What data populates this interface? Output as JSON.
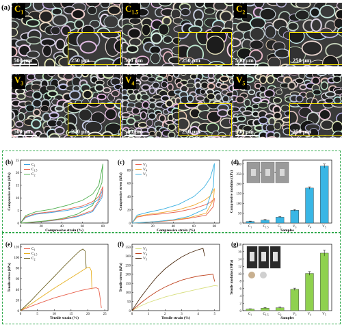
{
  "figure": {
    "panel_letters": {
      "a": "(a)",
      "b": "(b)",
      "c": "(c)",
      "d": "(d)",
      "e": "(e)",
      "f": "(f)",
      "g": "(g)"
    },
    "sem": [
      {
        "id": "C1",
        "tag": "C",
        "sub": "1",
        "scale_main": "500 μm",
        "scale_inset": "250 μm"
      },
      {
        "id": "C1.5",
        "tag": "C",
        "sub": "1.5",
        "scale_main": "500 μm",
        "scale_inset": "250 μm"
      },
      {
        "id": "C2",
        "tag": "C",
        "sub": "2",
        "scale_main": "500 μm",
        "scale_inset": "250 μm"
      },
      {
        "id": "V3",
        "tag": "V",
        "sub": "3",
        "scale_main": "500 μm",
        "scale_inset": "250 μm"
      },
      {
        "id": "V4",
        "tag": "V",
        "sub": "4",
        "scale_main": "500 μm",
        "scale_inset": "250 μm"
      },
      {
        "id": "V5",
        "tag": "V",
        "sub": "5",
        "scale_main": "500 μm",
        "scale_inset": "250 μm"
      }
    ],
    "colors": {
      "dash_border": "#2ea84a",
      "inset_border": "#ffea00",
      "tag_text": "#ffd400",
      "bar_d": "#39b6e5",
      "bar_g": "#8fd14f"
    }
  },
  "chart_data": [
    {
      "panel": "b",
      "type": "line",
      "xlabel": "Compressive strain (%)",
      "ylabel": "Compressive stress (kPa)",
      "xticks": [
        "0",
        "20",
        "40",
        "60",
        "80"
      ],
      "yticks": [
        "0",
        "5",
        "10",
        "15",
        "20",
        "25"
      ],
      "xlim": [
        0,
        85
      ],
      "ylim": [
        0,
        25
      ],
      "series": [
        {
          "name": "C1",
          "label": "C",
          "sub": "1",
          "color": "#3aa0e0",
          "x": [
            0,
            5,
            15,
            30,
            45,
            60,
            70,
            76,
            80,
            79,
            70,
            55,
            40,
            25,
            12,
            5,
            1
          ],
          "y": [
            0,
            2.2,
            3.5,
            4.2,
            5.0,
            6.2,
            7.8,
            9.5,
            13.5,
            10,
            4.5,
            2.5,
            1.4,
            0.7,
            0.3,
            0.1,
            0
          ]
        },
        {
          "name": "C1.5",
          "label": "C",
          "sub": "1.5",
          "color": "#e8604c",
          "x": [
            0,
            5,
            15,
            30,
            45,
            60,
            70,
            76,
            80,
            79,
            70,
            55,
            40,
            25,
            12,
            5,
            1
          ],
          "y": [
            0,
            2.5,
            3.8,
            4.5,
            5.5,
            6.8,
            8.5,
            10.5,
            14.5,
            11,
            5,
            2.8,
            1.5,
            0.8,
            0.3,
            0.1,
            0
          ]
        },
        {
          "name": "C2",
          "label": "C",
          "sub": "2",
          "color": "#4cae4c",
          "x": [
            0,
            5,
            15,
            30,
            45,
            60,
            70,
            76,
            80,
            79,
            70,
            55,
            40,
            25,
            12,
            5,
            1
          ],
          "y": [
            0,
            3.0,
            4.5,
            5.5,
            7.0,
            9.0,
            11.5,
            15.0,
            23.5,
            16,
            7,
            3.5,
            1.8,
            0.9,
            0.4,
            0.1,
            0
          ]
        }
      ]
    },
    {
      "panel": "c",
      "type": "line",
      "xlabel": "Compressive strain (%)",
      "ylabel": "Compressive stress (kPa)",
      "xticks": [
        "0",
        "20",
        "40",
        "60",
        "80"
      ],
      "yticks": [
        "0",
        "20",
        "40",
        "60",
        "80"
      ],
      "xlim": [
        0,
        85
      ],
      "ylim": [
        0,
        95
      ],
      "series": [
        {
          "name": "V3",
          "label": "V",
          "sub": "3",
          "color": "#e8604c",
          "x": [
            0,
            5,
            15,
            30,
            45,
            60,
            70,
            76,
            80,
            79,
            72,
            55,
            40,
            25,
            12,
            5,
            1
          ],
          "y": [
            0,
            9,
            12,
            14,
            17,
            22,
            27,
            31,
            37,
            25,
            12,
            7,
            4,
            2,
            1,
            0.3,
            0
          ]
        },
        {
          "name": "V4",
          "label": "V",
          "sub": "4",
          "color": "#f0a830",
          "x": [
            0,
            5,
            15,
            30,
            45,
            60,
            70,
            76,
            80,
            79,
            72,
            55,
            40,
            25,
            12,
            5,
            1
          ],
          "y": [
            0,
            10,
            13,
            16,
            20,
            27,
            34,
            41,
            52,
            35,
            15,
            8,
            4.5,
            2.5,
            1,
            0.3,
            0
          ]
        },
        {
          "name": "V5",
          "label": "V",
          "sub": "5",
          "color": "#3ab0e0",
          "x": [
            0,
            5,
            15,
            30,
            45,
            60,
            70,
            76,
            80,
            79,
            72,
            55,
            40,
            25,
            12,
            5,
            1
          ],
          "y": [
            0,
            12,
            16,
            21,
            28,
            40,
            54,
            68,
            90,
            55,
            22,
            10,
            5,
            2.5,
            1,
            0.3,
            0
          ]
        }
      ]
    },
    {
      "panel": "d",
      "type": "bar",
      "xlabel": "Samples",
      "ylabel": "Compressive modulus (kPa)",
      "categories": [
        {
          "t": "C",
          "s": "1"
        },
        {
          "t": "C",
          "s": "1.5"
        },
        {
          "t": "C",
          "s": "2"
        },
        {
          "t": "V",
          "s": "3"
        },
        {
          "t": "V",
          "s": "4"
        },
        {
          "t": "V",
          "s": "5"
        }
      ],
      "values": [
        8,
        15,
        30,
        65,
        178,
        290
      ],
      "errors": [
        2,
        3,
        3,
        4,
        6,
        10
      ],
      "yticks": [
        "0",
        "50",
        "100",
        "150",
        "200",
        "250",
        "300"
      ],
      "ylim": [
        0,
        320
      ]
    },
    {
      "panel": "e",
      "type": "line",
      "xlabel": "Tensile strain (%)",
      "ylabel": "Tensile stress (kPa)",
      "xticks": [
        "0",
        "5",
        "10",
        "15",
        "20",
        "25"
      ],
      "yticks": [
        "0",
        "20",
        "40",
        "60",
        "80",
        "100",
        "120"
      ],
      "xlim": [
        0,
        26
      ],
      "ylim": [
        0,
        125
      ],
      "series": [
        {
          "name": "C1",
          "label": "C",
          "sub": "1",
          "color": "#e8604c",
          "x": [
            0,
            3,
            6,
            10,
            14,
            18,
            21,
            22.5,
            23.2,
            23.5,
            24
          ],
          "y": [
            0,
            8,
            15,
            24,
            31,
            38,
            42,
            43,
            41,
            30,
            5
          ]
        },
        {
          "name": "C1.5",
          "label": "C",
          "sub": "1.5",
          "color": "#e6b020",
          "x": [
            0,
            3,
            6,
            10,
            14,
            17,
            19.5,
            20.5,
            21,
            21.2
          ],
          "y": [
            0,
            12,
            25,
            42,
            58,
            70,
            80,
            82,
            75,
            40
          ]
        },
        {
          "name": "C2",
          "label": "C",
          "sub": "2",
          "color": "#6b6020",
          "x": [
            0,
            3,
            6,
            10,
            13,
            16,
            17.5,
            18.5,
            19.2,
            19.5
          ],
          "y": [
            0,
            18,
            38,
            64,
            84,
            103,
            112,
            116,
            112,
            80
          ]
        }
      ]
    },
    {
      "panel": "f",
      "type": "line",
      "xlabel": "Tensile strain (%)",
      "ylabel": "Tensile stress (kPa)",
      "xticks": [
        "0",
        "1",
        "2",
        "3",
        "4",
        "5"
      ],
      "yticks": [
        "0",
        "50",
        "100",
        "150",
        "200",
        "250",
        "300",
        "350"
      ],
      "xlim": [
        0,
        5.3
      ],
      "ylim": [
        0,
        365
      ],
      "series": [
        {
          "name": "V3",
          "label": "V",
          "sub": "3",
          "color": "#d8df80",
          "x": [
            0,
            0.5,
            1,
            1.5,
            2,
            2.5,
            3,
            3.5,
            4,
            4.5,
            5,
            5.2
          ],
          "y": [
            0,
            25,
            45,
            60,
            75,
            87,
            98,
            108,
            118,
            128,
            138,
            135
          ]
        },
        {
          "name": "V4",
          "label": "V",
          "sub": "4",
          "color": "#c04420",
          "x": [
            0,
            0.5,
            1,
            1.5,
            2,
            2.5,
            3,
            3.5,
            4,
            4.5,
            4.9,
            5.0
          ],
          "y": [
            0,
            40,
            75,
            105,
            130,
            150,
            168,
            180,
            190,
            196,
            200,
            160
          ]
        },
        {
          "name": "V5",
          "label": "V",
          "sub": "5",
          "color": "#4a2a10",
          "x": [
            0,
            0.5,
            1,
            1.5,
            2,
            2.5,
            3,
            3.5,
            4,
            4.3,
            4.4
          ],
          "y": [
            0,
            70,
            130,
            185,
            230,
            265,
            295,
            318,
            335,
            342,
            300
          ]
        }
      ]
    },
    {
      "panel": "g",
      "type": "bar",
      "xlabel": "Samples",
      "ylabel": "Tensile modulus (MPa)",
      "categories": [
        {
          "t": "C",
          "s": "1"
        },
        {
          "t": "C",
          "s": "1.5"
        },
        {
          "t": "C",
          "s": "2"
        },
        {
          "t": "V",
          "s": "3"
        },
        {
          "t": "V",
          "s": "4"
        },
        {
          "t": "V",
          "s": "5"
        }
      ],
      "values": [
        0.4,
        0.7,
        0.8,
        5.8,
        10.1,
        15.6
      ],
      "errors": [
        0.1,
        0.15,
        0.15,
        0.3,
        0.5,
        0.8
      ],
      "yticks": [
        "0",
        "2",
        "4",
        "6",
        "8",
        "10",
        "12",
        "14",
        "16",
        "18"
      ],
      "ylim": [
        0,
        18
      ]
    }
  ]
}
